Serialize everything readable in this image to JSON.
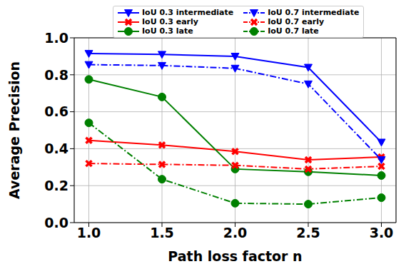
{
  "chart_data": {
    "type": "line",
    "x_label": "Path loss factor n",
    "y_label": "Average Precision",
    "x": [
      1.0,
      1.5,
      2.0,
      2.5,
      3.0
    ],
    "xlim": [
      0.9,
      3.1
    ],
    "xticks": [
      {
        "value": 1,
        "label": "1.0"
      },
      {
        "value": 1.5,
        "label": "1.5"
      },
      {
        "value": 2,
        "label": "2.0"
      },
      {
        "value": 2.5,
        "label": "2.5"
      },
      {
        "value": 3,
        "label": "3.0"
      }
    ],
    "ylim": [
      0,
      1
    ],
    "yticks": [
      {
        "value": 0,
        "label": "0.0"
      },
      0.2,
      0.4,
      0.6,
      0.8,
      {
        "value": 1,
        "label": "1.0"
      }
    ],
    "grid": true,
    "legend": "top",
    "series": [
      {
        "name": "IoU 0.3 intermediate",
        "color": "#0000ff",
        "marker": "triangle_down",
        "line_style": "solid",
        "values": [
          0.915,
          0.91,
          0.9,
          0.84,
          0.435
        ]
      },
      {
        "name": "IoU 0.3 early",
        "color": "#ff0000",
        "marker": "x",
        "line_style": "solid",
        "values": [
          0.445,
          0.42,
          0.385,
          0.34,
          0.355
        ]
      },
      {
        "name": "IoU 0.3 late",
        "color": "#008000",
        "marker": "circle",
        "line_style": "solid",
        "values": [
          0.775,
          0.68,
          0.29,
          0.275,
          0.255
        ]
      },
      {
        "name": "IoU 0.7 intermediate",
        "color": "#0000ff",
        "marker": "triangle_down",
        "line_style": "dashdot",
        "values": [
          0.855,
          0.85,
          0.835,
          0.75,
          0.34
        ]
      },
      {
        "name": "IoU 0.7 early",
        "color": "#ff0000",
        "marker": "x",
        "line_style": "dashdot",
        "values": [
          0.32,
          0.315,
          0.31,
          0.29,
          0.305
        ]
      },
      {
        "name": "IoU 0.7 late",
        "color": "#008000",
        "marker": "circle",
        "line_style": "dashdot",
        "values": [
          0.54,
          0.235,
          0.105,
          0.1,
          0.135
        ]
      }
    ]
  }
}
